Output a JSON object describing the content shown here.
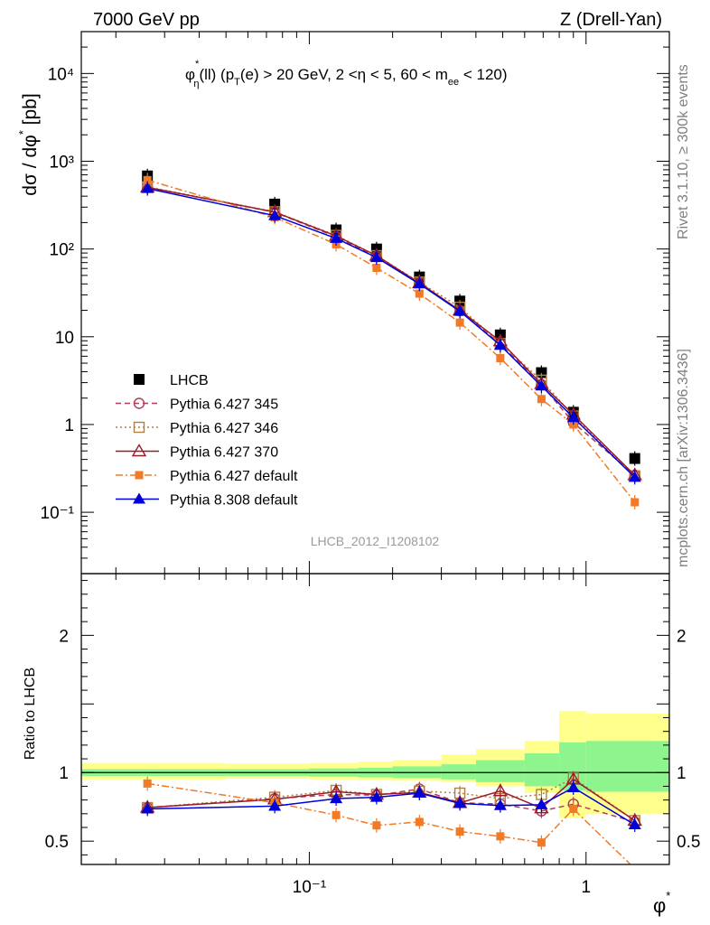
{
  "header": {
    "left": "7000 GeV pp",
    "right": "Z (Drell-Yan)"
  },
  "side_text": {
    "rivet": "Rivet 3.1.10, ≥ 300k events",
    "mcplots": "mcplots.cern.ch [arXiv:1306.3436]"
  },
  "chart_data": [
    {
      "type": "scatter",
      "title": "φ*_η(ll) (p_T(e) > 20 GeV, 2 <η < 5, 60 < m_ee < 120)",
      "title_parts": {
        "phi": "φ",
        "star": "*",
        "eta_sub": "η",
        "ll": "(ll) (p",
        "T_sub": "T",
        "cuts": "(e) > 20 GeV, 2 <η < 5, 60 < m",
        "ee_sub": "ee",
        "tail": " < 120)"
      },
      "ylabel": "dσ / dφ* [pb]",
      "ylabel_parts": {
        "main": "dσ / dφ",
        "star": "*",
        "unit": " [pb]"
      },
      "xlabel": "φ*",
      "xlabel_parts": {
        "phi": "φ",
        "star": "*"
      },
      "x_scale": "log",
      "y_scale": "log",
      "xlim": [
        0.015,
        2.0
      ],
      "ylim": [
        0.02,
        30000
      ],
      "x_tick_labels": {
        "0.1": "10⁻¹",
        "1": "1"
      },
      "y_tick_labels": {
        "0.1": "10⁻¹",
        "1": "1",
        "10": "10",
        "100": "10²",
        "1000": "10³",
        "10000": "10⁴"
      },
      "watermark": "LHCB_2012_I1208102",
      "legend_position": "bottom-left",
      "x": [
        0.026,
        0.075,
        0.125,
        0.175,
        0.25,
        0.35,
        0.49,
        0.69,
        0.9,
        1.5
      ],
      "series": [
        {
          "name": "LHCB",
          "color": "#000000",
          "marker": "filled-square",
          "line": "none",
          "y": [
            680,
            325,
            165,
            100,
            48,
            25.5,
            10.5,
            3.9,
            1.38,
            0.41
          ]
        },
        {
          "name": "Pythia 6.427 345",
          "color": "#b23c5a",
          "marker": "open-circle",
          "line": "dashed",
          "y": [
            505,
            262,
            138,
            82,
            41.5,
            19.8,
            8.3,
            2.85,
            1.05,
            0.265
          ]
        },
        {
          "name": "Pythia 6.427 346",
          "color": "#b08040",
          "marker": "open-square",
          "line": "dotted",
          "y": [
            510,
            266,
            143,
            84,
            42,
            21.7,
            8.4,
            3.2,
            1.25,
            0.26
          ]
        },
        {
          "name": "Pythia 6.427 370",
          "color": "#9b1c26",
          "marker": "open-triangle",
          "line": "solid",
          "y": [
            505,
            264,
            141,
            84,
            41,
            20,
            8.9,
            2.9,
            1.3,
            0.265
          ]
        },
        {
          "name": "Pythia 6.427 default",
          "color": "#f07a28",
          "marker": "filled-square-small",
          "line": "dashdot",
          "y": [
            610,
            230,
            113,
            61,
            31,
            14.5,
            5.7,
            1.95,
            1.0,
            0.13
          ]
        },
        {
          "name": "Pythia 8.308 default",
          "color": "#0000d8",
          "marker": "filled-triangle",
          "line": "solid",
          "y": [
            490,
            240,
            132,
            80,
            40,
            19.5,
            8.0,
            2.75,
            1.2,
            0.25
          ]
        }
      ]
    },
    {
      "type": "scatter",
      "title": "",
      "ylabel": "Ratio to LHCB",
      "x_scale": "log",
      "xlim": [
        0.015,
        2.0
      ],
      "ylim": [
        0.33,
        2.45
      ],
      "y_tick_labels": [
        "0.5",
        "1",
        "2"
      ],
      "reference_line": 1,
      "band_bins": [
        0.015,
        0.05,
        0.1,
        0.15,
        0.2,
        0.3,
        0.4,
        0.6,
        0.8,
        1.0,
        2.0
      ],
      "band_inner": {
        "color": "#8ef58e",
        "lower": [
          0.975,
          0.975,
          0.97,
          0.965,
          0.96,
          0.95,
          0.93,
          0.9,
          0.87,
          0.86
        ],
        "upper": [
          1.025,
          1.025,
          1.03,
          1.035,
          1.045,
          1.06,
          1.09,
          1.14,
          1.22,
          1.23
        ]
      },
      "band_outer": {
        "color": "#ffff8c",
        "lower": [
          0.95,
          0.955,
          0.95,
          0.945,
          0.94,
          0.93,
          0.9,
          0.85,
          0.67,
          0.7
        ],
        "upper": [
          1.07,
          1.065,
          1.07,
          1.08,
          1.09,
          1.13,
          1.17,
          1.23,
          1.45,
          1.43
        ]
      },
      "x": [
        0.026,
        0.075,
        0.125,
        0.175,
        0.25,
        0.35,
        0.49,
        0.69,
        0.9,
        1.5
      ],
      "series": [
        {
          "name": "Pythia 6.427 345",
          "color": "#b23c5a",
          "marker": "open-circle",
          "line": "dashed",
          "y": [
            0.745,
            0.81,
            0.84,
            0.835,
            0.88,
            0.78,
            0.77,
            0.72,
            0.77,
            0.64
          ]
        },
        {
          "name": "Pythia 6.427 346",
          "color": "#b08040",
          "marker": "open-square",
          "line": "dotted",
          "y": [
            0.745,
            0.82,
            0.87,
            0.84,
            0.865,
            0.85,
            0.81,
            0.84,
            0.96,
            0.65
          ]
        },
        {
          "name": "Pythia 6.427 370",
          "color": "#9b1c26",
          "marker": "open-triangle",
          "line": "solid",
          "y": [
            0.745,
            0.805,
            0.86,
            0.84,
            0.855,
            0.78,
            0.865,
            0.74,
            0.95,
            0.65
          ]
        },
        {
          "name": "Pythia 6.427 default",
          "color": "#f07a28",
          "marker": "filled-square-small",
          "line": "dashdot",
          "y": [
            0.92,
            0.78,
            0.69,
            0.615,
            0.64,
            0.57,
            0.535,
            0.49,
            0.735,
            0.3
          ]
        },
        {
          "name": "Pythia 8.308 default",
          "color": "#0000d8",
          "marker": "filled-triangle",
          "line": "solid",
          "y": [
            0.735,
            0.755,
            0.81,
            0.82,
            0.85,
            0.775,
            0.76,
            0.765,
            0.89,
            0.62
          ]
        }
      ]
    }
  ]
}
